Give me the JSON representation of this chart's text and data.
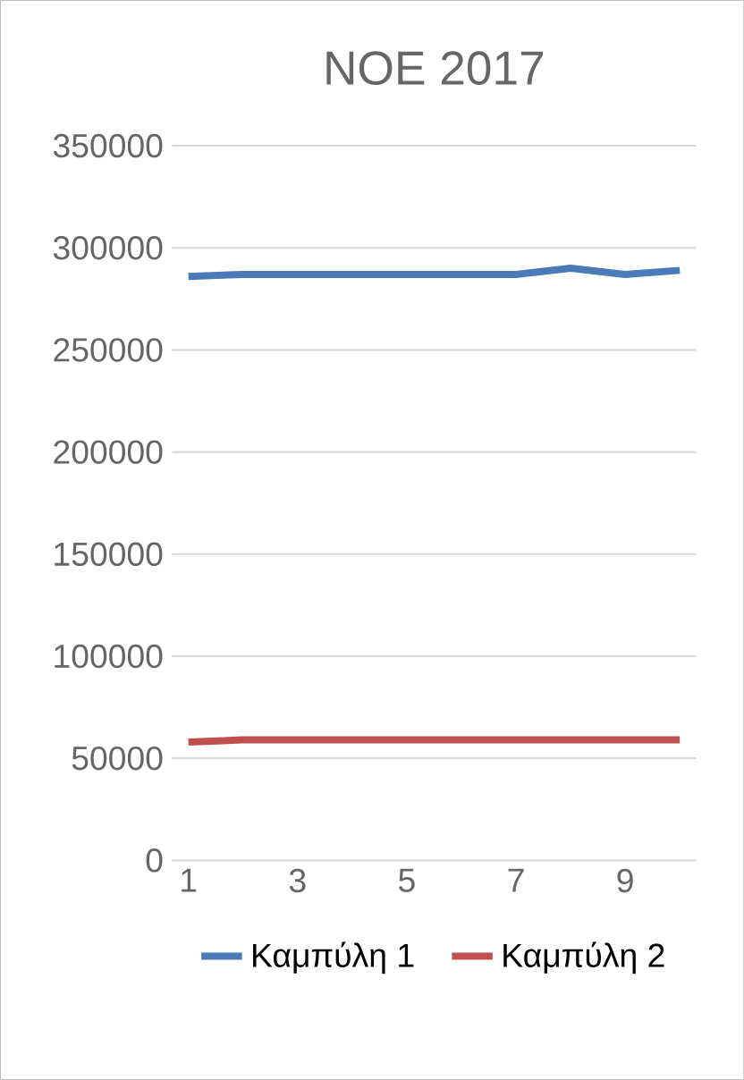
{
  "chart_data": {
    "type": "line",
    "title": "NOE 2017",
    "categories": [
      "1",
      null,
      "3",
      null,
      "5",
      null,
      "7",
      null,
      "9",
      null
    ],
    "series": [
      {
        "name": "Καμπύλη 1",
        "color": "#4a7ab8",
        "values": [
          286000,
          287000,
          287000,
          287000,
          287000,
          287000,
          287000,
          290000,
          287000,
          289000
        ]
      },
      {
        "name": "Καμπύλη 2",
        "color": "#c0504d",
        "values": [
          58000,
          59000,
          59000,
          59000,
          59000,
          59000,
          59000,
          59000,
          59000,
          59000
        ]
      }
    ],
    "ylim": [
      0,
      350000
    ],
    "yticks": [
      0,
      50000,
      100000,
      150000,
      200000,
      250000,
      300000,
      350000
    ],
    "grid": "y",
    "legend": "bottom",
    "marker": "none",
    "line_style": "solid"
  }
}
